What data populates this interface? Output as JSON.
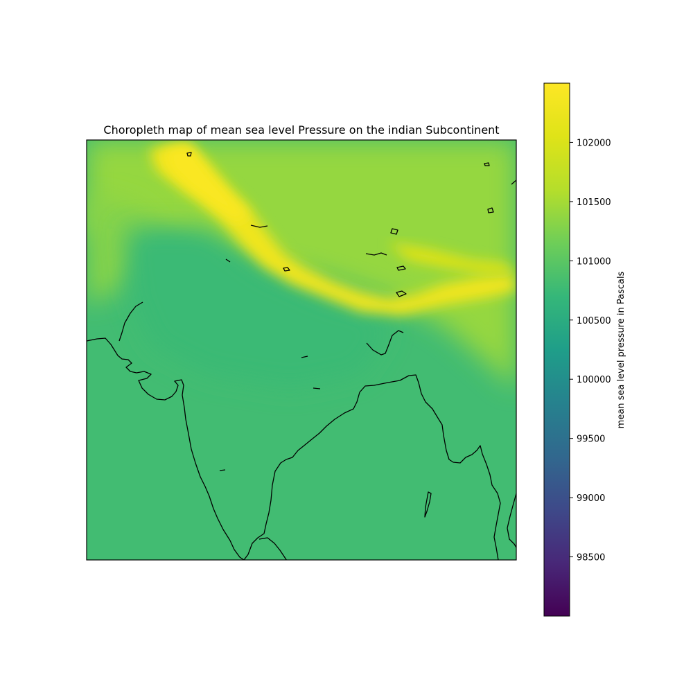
{
  "chart_data": {
    "type": "heatmap",
    "title": "Choropleth map of mean sea level Pressure on the indian Subcontinent",
    "colorbar": {
      "label": "mean sea level pressure in Pascals",
      "colormap": "viridis",
      "range": [
        98000,
        102500
      ],
      "ticks": [
        98500,
        99000,
        99500,
        100000,
        100500,
        101000,
        101500,
        102000
      ],
      "tick_labels": [
        "98500",
        "99000",
        "99500",
        "100000",
        "100500",
        "101000",
        "101500",
        "102000"
      ]
    },
    "field_summary": {
      "ocean_and_peninsula": 100800,
      "gangetic_plain": 100750,
      "northwest_highlands": 101300,
      "tibetan_plateau": 101400,
      "himalayan_ridge_max": 102300
    },
    "colors": {
      "frame": "#000000",
      "coastline": "#000000",
      "background": "#ffffff"
    }
  }
}
